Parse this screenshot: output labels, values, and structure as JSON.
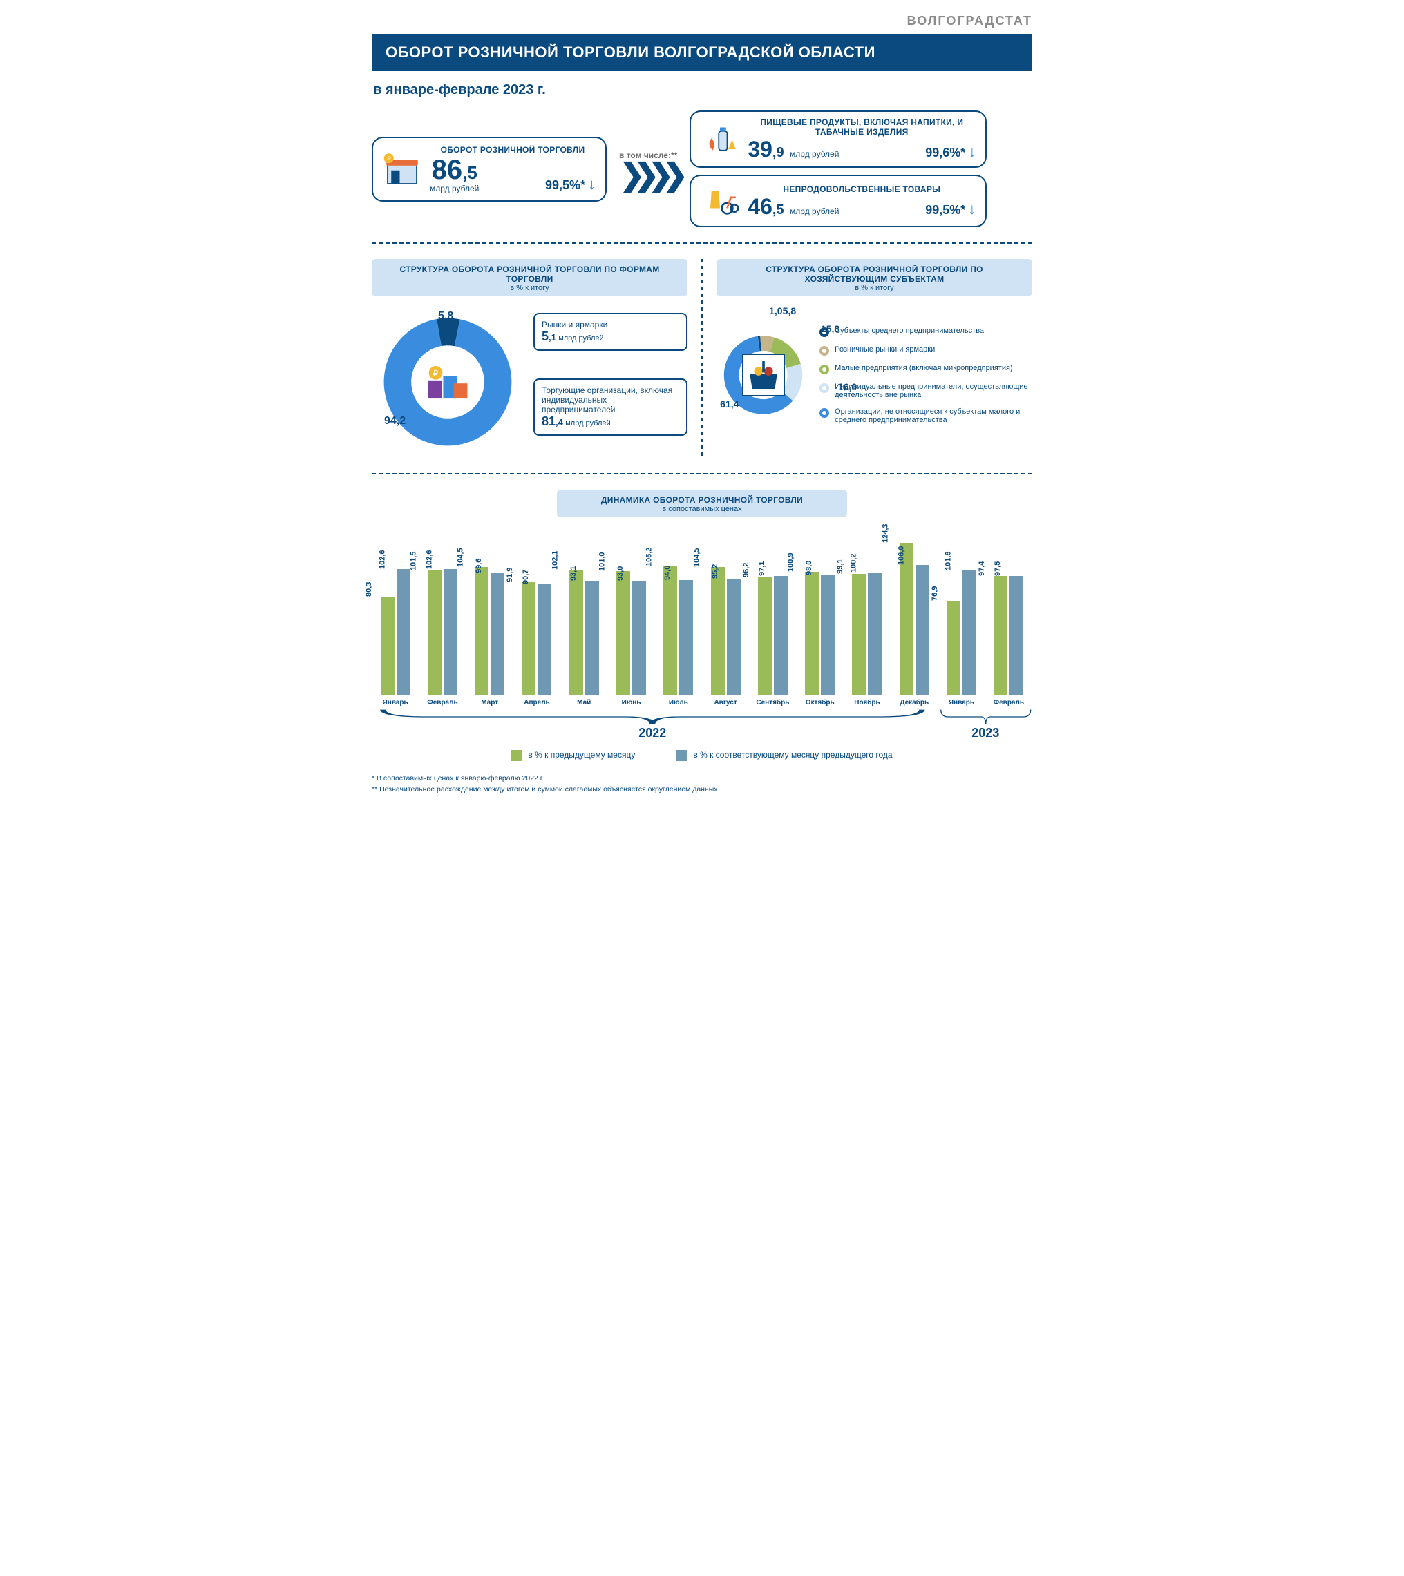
{
  "branding": "ВОЛГОГРАДСТАТ",
  "title": "ОБОРОТ РОЗНИЧНОЙ ТОРГОВЛИ ВОЛГОГРАДСКОЙ ОБЛАСТИ",
  "subtitle": "в январе-феврале 2023 г.",
  "colors": {
    "primary": "#0b4a7f",
    "accent_blue": "#3a8dde",
    "light_blue": "#cfe3f5",
    "donut1_main": "#3a8dde",
    "donut1_small": "#0b4a7f",
    "bar_green": "#9bbb59",
    "bar_blue": "#6f98b3",
    "grey": "#6b6b6b"
  },
  "top": {
    "main_card": {
      "title": "ОБОРОТ РОЗНИЧНОЙ ТОРГОВЛИ",
      "value_int": "86",
      "value_dec": ",5",
      "unit": "млрд рублей",
      "pct": "99,5%*"
    },
    "between": "в том числе:**",
    "food": {
      "title": "ПИЩЕВЫЕ ПРОДУКТЫ, ВКЛЮЧАЯ НАПИТКИ, И ТАБАЧНЫЕ ИЗДЕЛИЯ",
      "value_int": "39",
      "value_dec": ",9",
      "unit": "млрд рублей",
      "pct": "99,6%*"
    },
    "nonfood": {
      "title": "НЕПРОДОВОЛЬСТВЕННЫЕ ТОВАРЫ",
      "value_int": "46",
      "value_dec": ",5",
      "unit": "млрд рублей",
      "pct": "99,5%*"
    }
  },
  "donut1": {
    "head": "СТРУКТУРА ОБОРОТА РОЗНИЧНОЙ ТОРГОВЛИ ПО ФОРМАМ ТОРГОВЛИ",
    "sub": "в % к итогу",
    "slices": [
      {
        "label_pct": "5,8",
        "calc_pct": 5.8,
        "color": "#0b4a7f"
      },
      {
        "label_pct": "94,2",
        "calc_pct": 94.2,
        "color": "#3a8dde"
      }
    ],
    "callout_small": {
      "text": "Рынки и ярмарки",
      "value_int": "5",
      "value_dec": ",1",
      "unit": "млрд рублей"
    },
    "callout_big": {
      "text": "Торгующие организации, включая индивидуальных предпринимателей",
      "value_int": "81",
      "value_dec": ",4",
      "unit": "млрд рублей"
    }
  },
  "donut2": {
    "head": "СТРУКТУРА ОБОРОТА РОЗНИЧНОЙ ТОРГОВЛИ ПО ХОЗЯЙСТВУЮЩИМ СУБЪЕКТАМ",
    "sub": "в % к итогу",
    "slices": [
      {
        "label": "Субъекты среднего предпринимательства",
        "pct": 1.0,
        "lbl": "1,0",
        "color": "#0b4a7f"
      },
      {
        "label": "Розничные рынки и ярмарки",
        "pct": 5.8,
        "lbl": "5,8",
        "color": "#c6b58b"
      },
      {
        "label": "Малые предприятия (включая микропредприятия)",
        "pct": 15.8,
        "lbl": "15,8",
        "color": "#9bbb59"
      },
      {
        "label": "Индивидуальные предприниматели, осуществляющие деятельность вне рынка",
        "pct": 16.0,
        "lbl": "16,0",
        "color": "#cfe3f5"
      },
      {
        "label": "Организации, не относящиеся к субъектам малого и среднего предпринимательства",
        "pct": 61.4,
        "lbl": "61,4",
        "color": "#3a8dde"
      }
    ]
  },
  "bars": {
    "head": "ДИНАМИКА ОБОРОТА РОЗНИЧНОЙ ТОРГОВЛИ",
    "sub": "в сопоставимых ценах",
    "max_scale": 130,
    "series_a_color": "#9bbb59",
    "series_b_color": "#6f98b3",
    "series_a_label": "в % к предыдущему месяцу",
    "series_b_label": "в % к соответствующему месяцу предыдущего года",
    "months": [
      {
        "m": "Январь",
        "a": 80.3,
        "b": 102.6,
        "year": 2022
      },
      {
        "m": "Февраль",
        "a": 101.5,
        "b": 102.6,
        "year": 2022
      },
      {
        "m": "Март",
        "a": 104.5,
        "b": 99.6,
        "year": 2022
      },
      {
        "m": "Апрель",
        "a": 91.9,
        "b": 90.7,
        "year": 2022
      },
      {
        "m": "Май",
        "a": 102.1,
        "b": 93.1,
        "year": 2022
      },
      {
        "m": "Июнь",
        "a": 101.0,
        "b": 93.0,
        "year": 2022
      },
      {
        "m": "Июль",
        "a": 105.2,
        "b": 94.0,
        "year": 2022
      },
      {
        "m": "Август",
        "a": 104.5,
        "b": 95.2,
        "year": 2022
      },
      {
        "m": "Сентябрь",
        "a": 96.2,
        "b": 97.1,
        "year": 2022
      },
      {
        "m": "Октябрь",
        "a": 100.9,
        "b": 98.0,
        "year": 2022
      },
      {
        "m": "Ноябрь",
        "a": 99.1,
        "b": 100.2,
        "year": 2022
      },
      {
        "m": "Декабрь",
        "a": 124.3,
        "b": 106.0,
        "year": 2022
      },
      {
        "m": "Январь",
        "a": 76.9,
        "b": 101.6,
        "year": 2023
      },
      {
        "m": "Февраль",
        "a": 97.4,
        "b": 97.5,
        "year": 2023
      }
    ],
    "year_labels": {
      "y2022": "2022",
      "y2023": "2023"
    }
  },
  "footnotes": {
    "f1": "* В сопоставимых ценах к январю-февралю 2022 г.",
    "f2": "** Незначительное расхождение между итогом и суммой слагаемых объясняется округлением данных."
  }
}
